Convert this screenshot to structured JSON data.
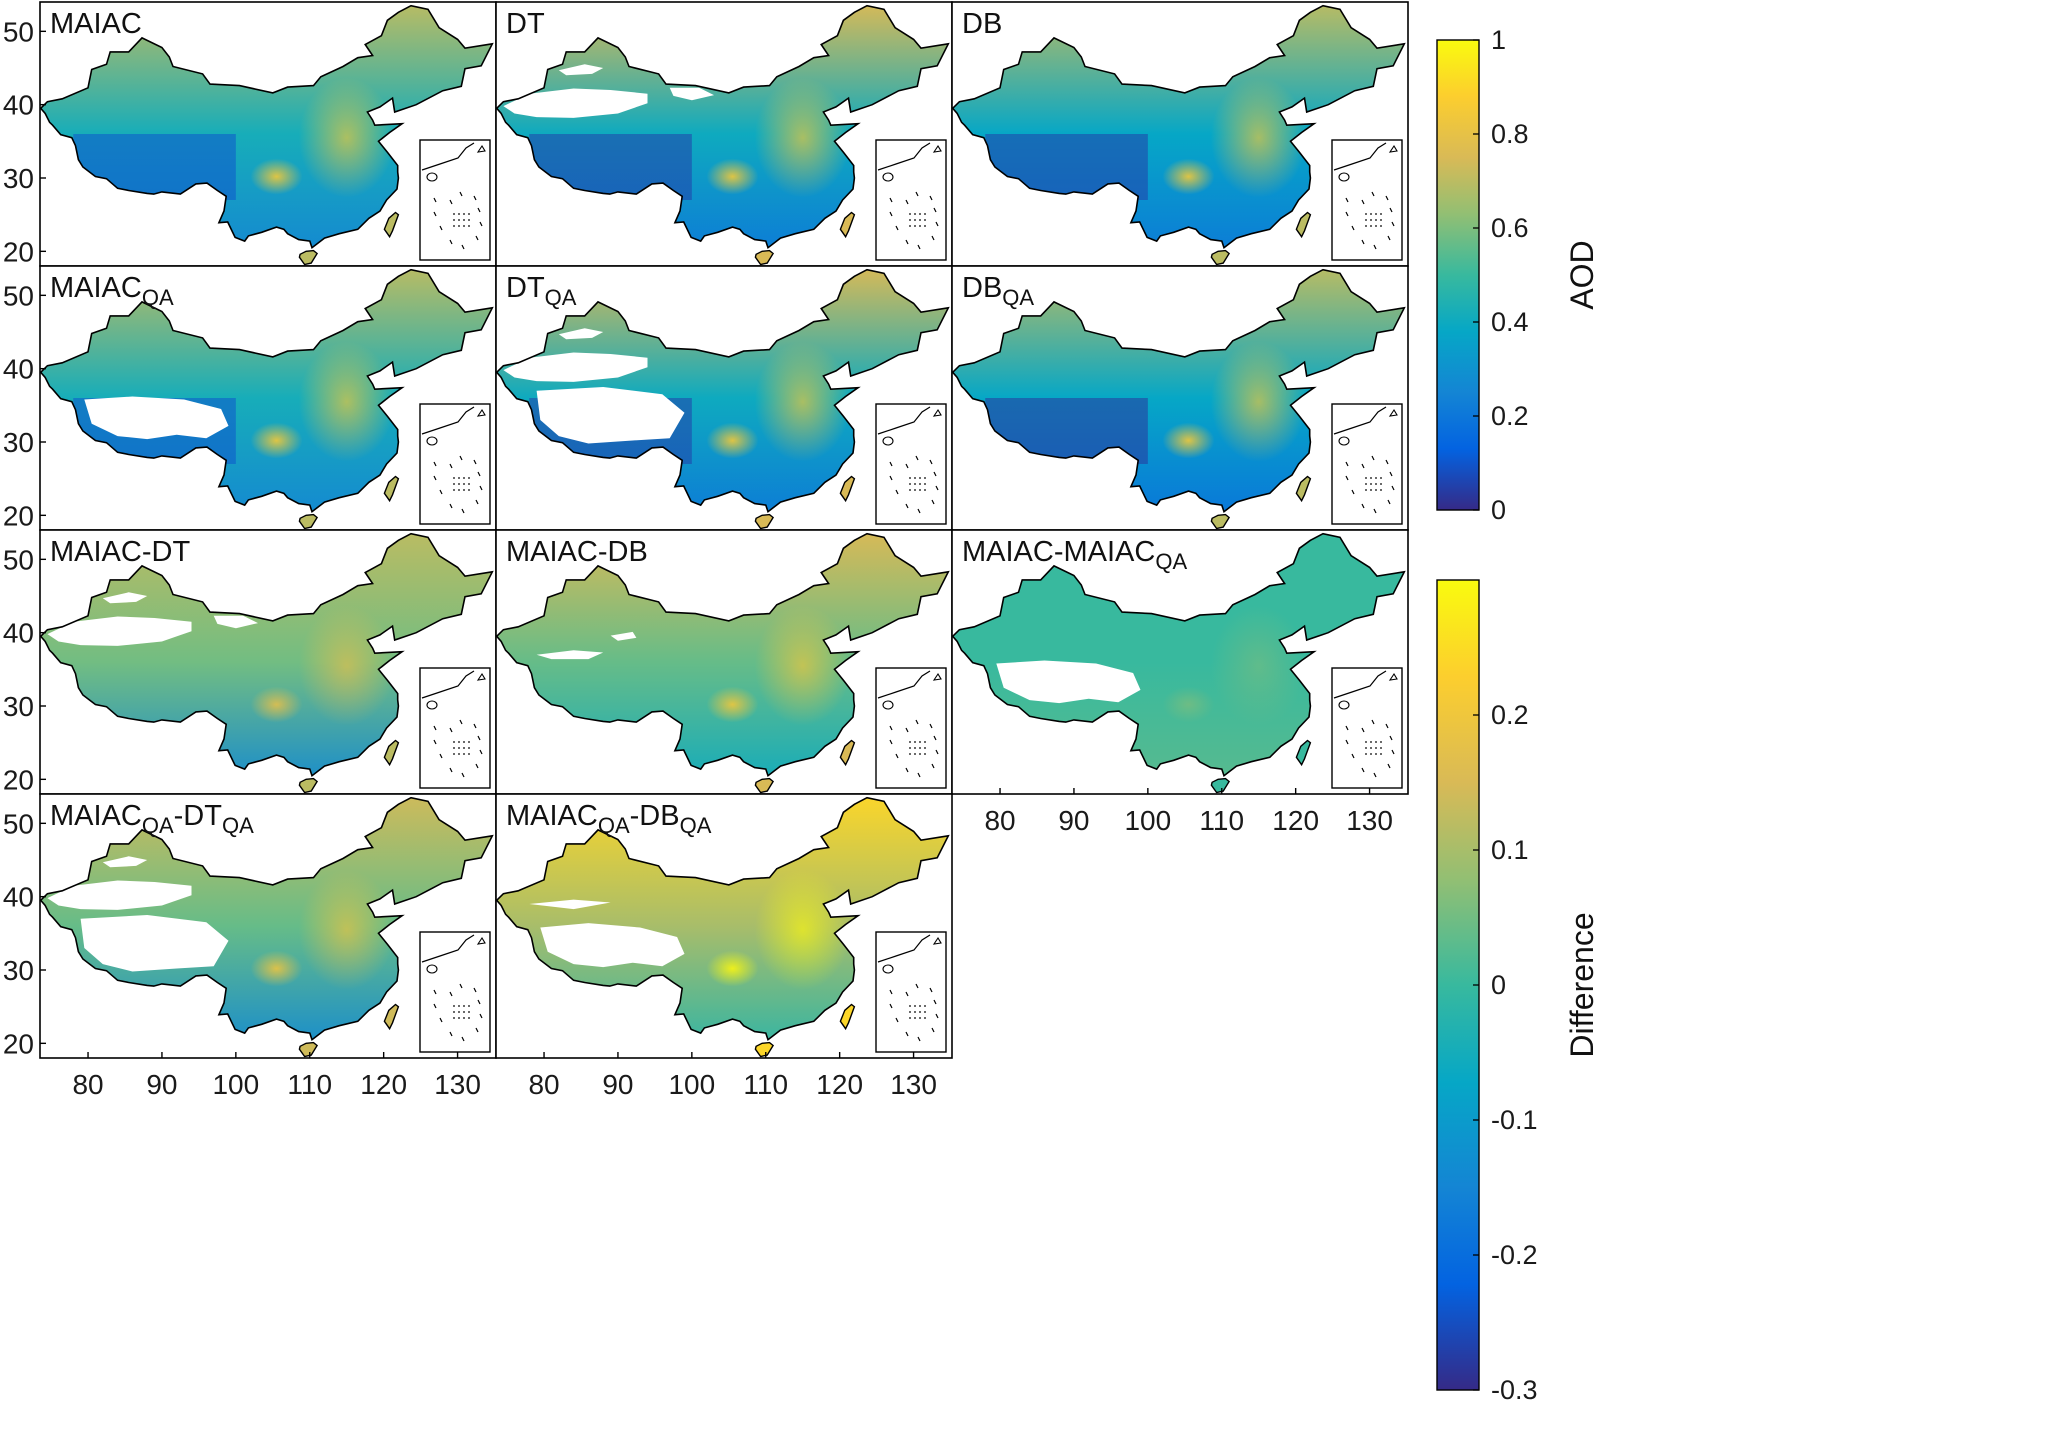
{
  "figure": {
    "panels": [
      {
        "title": "MAIAC",
        "sub": "",
        "title2": "",
        "sub2": "",
        "scale": "aod",
        "mean": 0.36,
        "ns": [
          0.25,
          0.42,
          0.7
        ],
        "mask": "none"
      },
      {
        "title": "DT",
        "sub": "",
        "title2": "",
        "sub2": "",
        "scale": "aod",
        "mean": 0.46,
        "ns": [
          0.2,
          0.4,
          0.75
        ],
        "mask": "dt"
      },
      {
        "title": "DB",
        "sub": "",
        "title2": "",
        "sub2": "",
        "scale": "aod",
        "mean": 0.34,
        "ns": [
          0.2,
          0.38,
          0.7
        ],
        "mask": "none"
      },
      {
        "title": "MAIAC",
        "sub": "QA",
        "title2": "",
        "sub2": "",
        "scale": "aod",
        "mean": 0.35,
        "ns": [
          0.25,
          0.42,
          0.7
        ],
        "mask": "tibet"
      },
      {
        "title": "DT",
        "sub": "QA",
        "title2": "",
        "sub2": "",
        "scale": "aod",
        "mean": 0.45,
        "ns": [
          0.2,
          0.4,
          0.75
        ],
        "mask": "dtqa"
      },
      {
        "title": "DB",
        "sub": "QA",
        "title2": "",
        "sub2": "",
        "scale": "aod",
        "mean": 0.3,
        "ns": [
          0.18,
          0.38,
          0.7
        ],
        "mask": "none"
      },
      {
        "title": "MAIAC-DT",
        "sub": "",
        "title2": "",
        "sub2": "",
        "scale": "diff",
        "mean": 0.02,
        "ns": [
          -0.14,
          0.05,
          0.12
        ],
        "mask": "dt"
      },
      {
        "title": "MAIAC-DB",
        "sub": "",
        "title2": "",
        "sub2": "",
        "scale": "diff",
        "mean": 0.04,
        "ns": [
          -0.06,
          0.04,
          0.15
        ],
        "mask": "db"
      },
      {
        "title": "MAIAC-MAIAC",
        "sub": "QA",
        "title2": "",
        "sub2": "",
        "scale": "diff",
        "mean": 0.0,
        "ns": [
          0.03,
          0.0,
          0.0
        ],
        "mask": "tibet"
      },
      {
        "title": "MAIAC",
        "sub": "QA",
        "title2": "-DT",
        "sub2": "QA",
        "scale": "diff",
        "mean": 0.02,
        "ns": [
          -0.14,
          0.04,
          0.14
        ],
        "mask": "dtqa"
      },
      {
        "title": "MAIAC",
        "sub": "QA",
        "title2": "-DB",
        "sub2": "QA",
        "scale": "diff",
        "mean": 0.08,
        "ns": [
          -0.02,
          0.1,
          0.24
        ],
        "mask": "dbqa"
      }
    ],
    "lat_ticks": [
      20,
      30,
      40,
      50
    ],
    "lon_ticks": [
      80,
      90,
      100,
      110,
      120,
      130
    ],
    "colorbars": [
      {
        "label": "AOD",
        "min": 0,
        "max": 1,
        "ticks": [
          0,
          0.2,
          0.4,
          0.6,
          0.8,
          1
        ],
        "tick_labels": [
          "0",
          "0.2",
          "0.4",
          "0.6",
          "0.8",
          "1"
        ]
      },
      {
        "label": "Difference",
        "min": -0.3,
        "max": 0.3,
        "ticks": [
          -0.3,
          -0.2,
          -0.1,
          0,
          0.1,
          0.2
        ],
        "tick_labels": [
          "-0.3",
          "-0.2",
          "-0.1",
          "0",
          "0.1",
          "0.2"
        ]
      }
    ],
    "colormap": "parula",
    "colors": {
      "low": "#352a87",
      "mid": "#21b1a6",
      "high": "#f9fb0e",
      "frame": "#000000",
      "background": "#ffffff"
    }
  }
}
